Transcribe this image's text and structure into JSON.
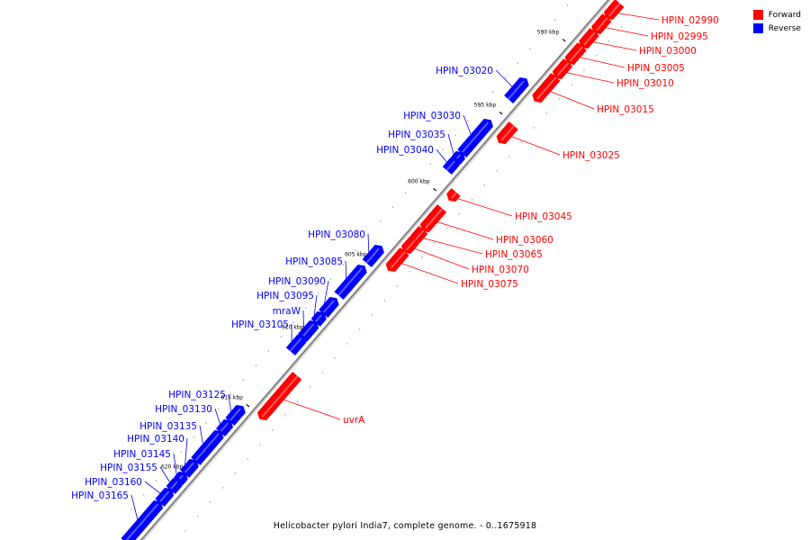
{
  "legend": {
    "forward_label": "Forward",
    "reverse_label": "Reverse",
    "forward_color": "#ff0000",
    "reverse_color": "#0000ff"
  },
  "caption": "Helicobacter pylori India7, complete genome. - 0..1675918",
  "ticks": [
    "590 kbp",
    "595 kbp",
    "600 kbp",
    "605 kbp",
    "610 kbp",
    "615 kbp",
    "620 kbp"
  ],
  "forward_genes": [
    "HPIN_02990",
    "HPIN_02995",
    "HPIN_03000",
    "HPIN_03005",
    "HPIN_03010",
    "HPIN_03015",
    "HPIN_03025",
    "HPIN_03045",
    "HPIN_03060",
    "HPIN_03065",
    "HPIN_03070",
    "HPIN_03075",
    "uvrA"
  ],
  "reverse_genes": [
    "HPIN_03020",
    "HPIN_03030",
    "HPIN_03035",
    "HPIN_03040",
    "HPIN_03080",
    "HPIN_03085",
    "HPIN_03090",
    "HPIN_03095",
    "mraW",
    "HPIN_03105",
    "HPIN_03125",
    "HPIN_03130",
    "HPIN_03135",
    "HPIN_03140",
    "HPIN_03145",
    "HPIN_03155",
    "HPIN_03160",
    "HPIN_03165"
  ]
}
